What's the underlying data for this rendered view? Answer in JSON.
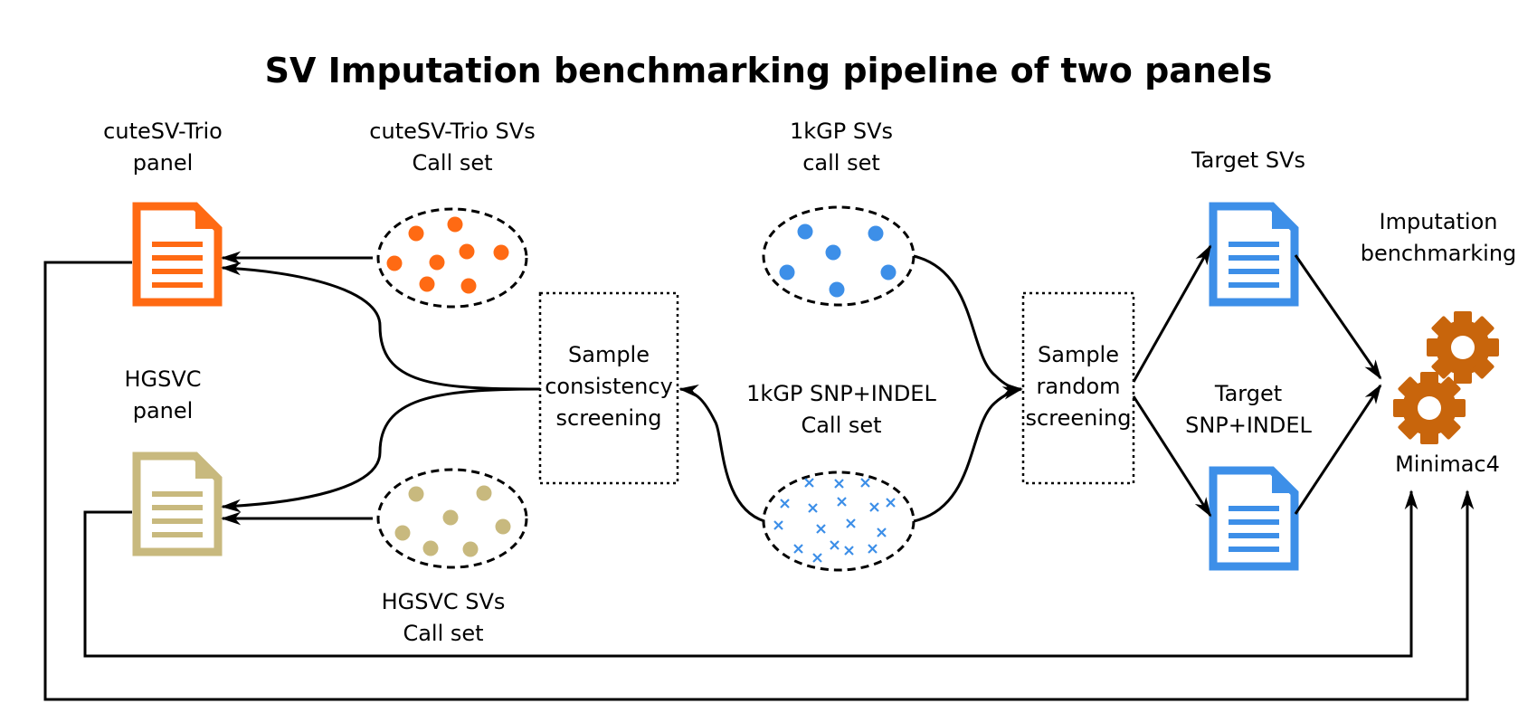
{
  "title": "SV Imputation benchmarking pipeline of two panels",
  "labels": {
    "cutesv_panel": [
      "cuteSV-Trio",
      "panel"
    ],
    "hgsvc_panel": [
      "HGSVC",
      "panel"
    ],
    "cutesv_callset": [
      "cuteSV-Trio SVs",
      "Call set"
    ],
    "hgsvc_callset": [
      "HGSVC SVs",
      "Call set"
    ],
    "kgp_sv_callset": [
      "1kGP SVs",
      "call set"
    ],
    "kgp_snp_callset": [
      "1kGP SNP+INDEL",
      "Call set"
    ],
    "consistency_box": [
      "Sample",
      "consistency",
      "screening"
    ],
    "random_box": [
      "Sample",
      "random",
      "screening"
    ],
    "target_svs": [
      "Target SVs"
    ],
    "target_snp": [
      "Target",
      "SNP+INDEL"
    ],
    "imputation": [
      "Imputation",
      "benchmarking"
    ],
    "minimac": [
      "Minimac4"
    ]
  },
  "colors": {
    "cutesv": "#ff6a13",
    "hgsvc": "#c8b97e",
    "kgp": "#3d8fe8",
    "target": "#3d8fe8",
    "gear": "#c8650c",
    "line": "#000000"
  },
  "icons": {
    "panel_doc": "document-icon",
    "call_set": "ellipse-cluster",
    "tool": "gear-icon"
  }
}
